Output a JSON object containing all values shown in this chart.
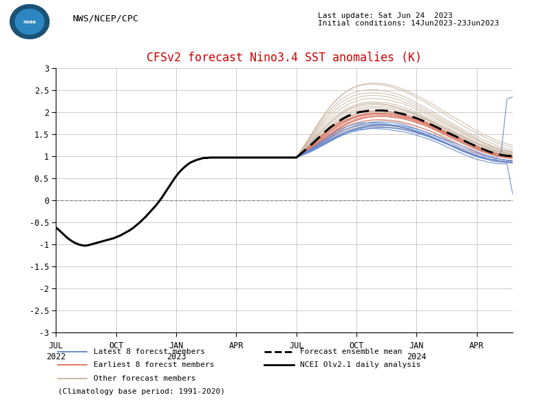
{
  "title": "CFSv2 forecast Nino3.4 SST anomalies (K)",
  "title_color": "#cc0000",
  "header_left": "NWS/NCEP/CPC",
  "header_right_line1": "Last update: Sat Jun 24  2023",
  "header_right_line2": "Initial conditions: 14Jun2023-23Jun2023",
  "ylim": [
    -3,
    3
  ],
  "ytick_vals": [
    -3,
    -2.5,
    -2,
    -1.5,
    -1,
    -0.5,
    0,
    0.5,
    1,
    1.5,
    2,
    2.5,
    3
  ],
  "xlabel_months": [
    "JUL",
    "OCT",
    "JAN",
    "APR",
    "JUL",
    "OCT",
    "JAN",
    "APR"
  ],
  "xlabel_years": [
    "2022",
    "",
    "2023",
    "",
    "",
    "",
    "2024",
    ""
  ],
  "background_color": "#ffffff",
  "grid_color": "#bbbbbb",
  "legend_color_latest": "#6688cc",
  "legend_color_earliest": "#dd7766",
  "legend_color_other": "#c8b4a0",
  "climatology_note": "(Climatology base period: 1991-2020)",
  "obs_x": [
    0,
    4,
    8,
    12,
    16,
    20,
    24,
    28,
    32,
    36,
    40,
    44,
    48,
    52,
    56,
    60,
    64,
    68,
    72,
    76,
    80,
    84,
    88,
    92,
    96,
    100,
    104,
    108,
    112,
    116,
    120,
    124,
    128,
    132,
    136,
    140,
    144,
    148,
    152,
    156,
    160,
    164,
    168,
    172,
    176,
    180,
    184,
    188,
    192,
    196,
    200,
    204,
    208,
    212,
    216,
    220,
    224,
    228,
    232,
    236,
    240,
    244,
    248,
    252,
    256,
    260,
    264,
    268,
    272,
    276,
    280,
    284,
    288,
    292,
    296,
    300
  ],
  "obs_y": [
    -0.62,
    -0.68,
    -0.75,
    -0.82,
    -0.88,
    -0.93,
    -0.97,
    -1.0,
    -1.02,
    -1.03,
    -1.02,
    -1.0,
    -0.98,
    -0.96,
    -0.94,
    -0.92,
    -0.9,
    -0.88,
    -0.86,
    -0.83,
    -0.8,
    -0.76,
    -0.72,
    -0.68,
    -0.63,
    -0.57,
    -0.51,
    -0.44,
    -0.37,
    -0.29,
    -0.21,
    -0.13,
    -0.04,
    0.06,
    0.17,
    0.28,
    0.39,
    0.5,
    0.6,
    0.68,
    0.75,
    0.81,
    0.86,
    0.89,
    0.92,
    0.94,
    0.96,
    0.96,
    0.97,
    0.97,
    0.97,
    0.97,
    0.97,
    0.97,
    0.97,
    0.97,
    0.97,
    0.97,
    0.97,
    0.97,
    0.97,
    0.97,
    0.97,
    0.97,
    0.97,
    0.97,
    0.97,
    0.97,
    0.97,
    0.97,
    0.97,
    0.97,
    0.97,
    0.97,
    0.97,
    0.97
  ],
  "fcast_start": 300,
  "fcast_end": 570,
  "latest8_y": [
    [
      0.97,
      1.02,
      1.07,
      1.13,
      1.2,
      1.27,
      1.34,
      1.41,
      1.47,
      1.52,
      1.56,
      1.59,
      1.61,
      1.63,
      1.64,
      1.65,
      1.65,
      1.64,
      1.63,
      1.61,
      1.58,
      1.55,
      1.51,
      1.47,
      1.42,
      1.37,
      1.32,
      1.26,
      1.21,
      1.15,
      1.1,
      1.05,
      1.01,
      0.97,
      0.94,
      0.91,
      0.89,
      0.87,
      0.86
    ],
    [
      0.97,
      1.03,
      1.09,
      1.15,
      1.22,
      1.29,
      1.36,
      1.43,
      1.5,
      1.56,
      1.61,
      1.65,
      1.68,
      1.7,
      1.71,
      1.72,
      1.72,
      1.71,
      1.7,
      1.68,
      1.65,
      1.62,
      1.58,
      1.54,
      1.49,
      1.44,
      1.39,
      1.34,
      1.29,
      1.24,
      1.19,
      1.14,
      1.09,
      1.04,
      1.0,
      0.96,
      0.93,
      0.91,
      0.9
    ],
    [
      0.97,
      1.04,
      1.11,
      1.18,
      1.26,
      1.34,
      1.42,
      1.5,
      1.57,
      1.63,
      1.68,
      1.72,
      1.75,
      1.77,
      1.78,
      1.78,
      1.77,
      1.76,
      1.74,
      1.71,
      1.67,
      1.63,
      1.58,
      1.53,
      1.48,
      1.42,
      1.37,
      1.31,
      1.25,
      1.19,
      1.14,
      1.09,
      1.05,
      1.01,
      0.98,
      0.95,
      0.93,
      0.91,
      0.9
    ],
    [
      0.97,
      1.05,
      1.12,
      1.2,
      1.28,
      1.36,
      1.44,
      1.51,
      1.58,
      1.63,
      1.67,
      1.7,
      1.72,
      1.73,
      1.73,
      1.72,
      1.71,
      1.69,
      1.67,
      1.64,
      1.61,
      1.57,
      1.53,
      1.48,
      1.43,
      1.37,
      1.32,
      1.26,
      1.2,
      1.14,
      1.09,
      1.04,
      1.0,
      0.96,
      0.93,
      0.91,
      0.89,
      0.88,
      0.87
    ],
    [
      0.97,
      1.04,
      1.1,
      1.17,
      1.24,
      1.31,
      1.38,
      1.45,
      1.51,
      1.56,
      1.6,
      1.63,
      1.65,
      1.66,
      1.66,
      1.66,
      1.65,
      1.64,
      1.62,
      1.6,
      1.57,
      1.53,
      1.49,
      1.45,
      1.4,
      1.35,
      1.3,
      1.25,
      1.19,
      1.14,
      1.09,
      1.04,
      1.0,
      0.96,
      0.93,
      0.91,
      0.89,
      0.88,
      0.87
    ],
    [
      0.97,
      1.03,
      1.08,
      1.14,
      1.21,
      1.28,
      1.35,
      1.42,
      1.49,
      1.55,
      1.6,
      1.64,
      1.67,
      1.69,
      1.7,
      1.7,
      1.7,
      1.69,
      1.67,
      1.65,
      1.62,
      1.58,
      1.54,
      1.49,
      1.44,
      1.38,
      1.32,
      1.26,
      1.2,
      1.14,
      1.08,
      1.03,
      0.98,
      0.94,
      0.91,
      0.88,
      0.87,
      0.86,
      0.85
    ],
    [
      0.97,
      1.05,
      1.13,
      1.21,
      1.3,
      1.39,
      1.48,
      1.56,
      1.63,
      1.68,
      1.72,
      1.75,
      1.76,
      1.76,
      1.76,
      1.75,
      1.73,
      1.71,
      1.68,
      1.65,
      1.61,
      1.57,
      1.52,
      1.47,
      1.42,
      1.36,
      1.3,
      1.24,
      1.18,
      1.12,
      1.07,
      1.02,
      0.98,
      0.95,
      0.93,
      0.92,
      1.1,
      2.3,
      2.35
    ],
    [
      0.97,
      1.04,
      1.1,
      1.17,
      1.24,
      1.31,
      1.38,
      1.44,
      1.5,
      1.55,
      1.58,
      1.61,
      1.62,
      1.63,
      1.63,
      1.62,
      1.61,
      1.59,
      1.57,
      1.55,
      1.52,
      1.48,
      1.44,
      1.4,
      1.35,
      1.3,
      1.24,
      1.18,
      1.12,
      1.07,
      1.01,
      0.96,
      0.92,
      0.89,
      0.86,
      0.84,
      0.83,
      0.83,
      0.14
    ]
  ],
  "earliest8_y": [
    [
      0.97,
      1.05,
      1.13,
      1.22,
      1.31,
      1.4,
      1.49,
      1.58,
      1.66,
      1.73,
      1.79,
      1.83,
      1.87,
      1.89,
      1.9,
      1.91,
      1.9,
      1.89,
      1.87,
      1.85,
      1.81,
      1.78,
      1.73,
      1.68,
      1.63,
      1.57,
      1.51,
      1.45,
      1.39,
      1.33,
      1.27,
      1.21,
      1.16,
      1.11,
      1.07,
      1.04,
      1.01,
      0.99,
      0.98
    ],
    [
      0.97,
      1.06,
      1.15,
      1.24,
      1.33,
      1.43,
      1.52,
      1.61,
      1.69,
      1.76,
      1.82,
      1.86,
      1.9,
      1.92,
      1.93,
      1.94,
      1.93,
      1.92,
      1.9,
      1.87,
      1.84,
      1.8,
      1.76,
      1.71,
      1.66,
      1.6,
      1.54,
      1.48,
      1.42,
      1.36,
      1.3,
      1.24,
      1.18,
      1.13,
      1.09,
      1.05,
      1.02,
      1.0,
      0.99
    ],
    [
      0.97,
      1.07,
      1.17,
      1.27,
      1.38,
      1.48,
      1.58,
      1.67,
      1.75,
      1.82,
      1.87,
      1.91,
      1.94,
      1.96,
      1.97,
      1.97,
      1.97,
      1.95,
      1.93,
      1.91,
      1.87,
      1.83,
      1.79,
      1.74,
      1.68,
      1.62,
      1.56,
      1.5,
      1.44,
      1.38,
      1.32,
      1.26,
      1.2,
      1.14,
      1.09,
      1.05,
      1.02,
      1.0,
      0.98
    ],
    [
      0.97,
      1.06,
      1.14,
      1.23,
      1.32,
      1.41,
      1.5,
      1.59,
      1.67,
      1.74,
      1.79,
      1.84,
      1.87,
      1.89,
      1.9,
      1.9,
      1.9,
      1.88,
      1.87,
      1.84,
      1.81,
      1.77,
      1.73,
      1.68,
      1.62,
      1.56,
      1.5,
      1.44,
      1.38,
      1.32,
      1.26,
      1.2,
      1.14,
      1.09,
      1.05,
      1.01,
      0.98,
      0.96,
      0.95
    ],
    [
      0.97,
      1.07,
      1.16,
      1.26,
      1.36,
      1.46,
      1.56,
      1.65,
      1.73,
      1.8,
      1.86,
      1.9,
      1.93,
      1.95,
      1.96,
      1.96,
      1.96,
      1.95,
      1.93,
      1.9,
      1.87,
      1.83,
      1.78,
      1.73,
      1.67,
      1.61,
      1.55,
      1.49,
      1.43,
      1.37,
      1.31,
      1.25,
      1.19,
      1.14,
      1.09,
      1.05,
      1.02,
      1.0,
      0.99
    ],
    [
      0.97,
      1.08,
      1.18,
      1.29,
      1.4,
      1.51,
      1.61,
      1.7,
      1.78,
      1.84,
      1.89,
      1.93,
      1.96,
      1.97,
      1.98,
      1.97,
      1.96,
      1.95,
      1.92,
      1.89,
      1.86,
      1.82,
      1.77,
      1.71,
      1.65,
      1.59,
      1.52,
      1.46,
      1.39,
      1.33,
      1.27,
      1.21,
      1.15,
      1.1,
      1.06,
      1.02,
      0.99,
      0.97,
      0.96
    ],
    [
      0.97,
      1.05,
      1.12,
      1.2,
      1.28,
      1.37,
      1.45,
      1.54,
      1.61,
      1.68,
      1.73,
      1.77,
      1.8,
      1.82,
      1.83,
      1.83,
      1.82,
      1.81,
      1.79,
      1.76,
      1.73,
      1.69,
      1.64,
      1.59,
      1.54,
      1.48,
      1.42,
      1.36,
      1.3,
      1.24,
      1.18,
      1.12,
      1.07,
      1.02,
      0.98,
      0.95,
      0.93,
      0.91,
      0.9
    ],
    [
      0.97,
      1.09,
      1.2,
      1.31,
      1.43,
      1.54,
      1.65,
      1.74,
      1.82,
      1.89,
      1.94,
      1.98,
      2.01,
      2.02,
      2.03,
      2.03,
      2.02,
      2.0,
      1.98,
      1.95,
      1.91,
      1.87,
      1.82,
      1.77,
      1.71,
      1.65,
      1.58,
      1.52,
      1.46,
      1.39,
      1.33,
      1.27,
      1.21,
      1.16,
      1.11,
      1.07,
      1.03,
      1.01,
      1.0
    ]
  ],
  "other_members_y": [
    [
      0.97,
      1.06,
      1.15,
      1.25,
      1.35,
      1.46,
      1.56,
      1.66,
      1.75,
      1.83,
      1.89,
      1.94,
      1.97,
      1.99,
      2.0,
      2.0,
      1.99,
      1.97,
      1.95,
      1.92,
      1.89,
      1.85,
      1.8,
      1.75,
      1.69,
      1.63,
      1.57,
      1.51,
      1.45,
      1.39,
      1.33,
      1.27,
      1.22,
      1.17,
      1.13,
      1.09,
      1.06,
      1.04,
      1.03
    ],
    [
      0.97,
      1.07,
      1.17,
      1.28,
      1.4,
      1.51,
      1.62,
      1.72,
      1.81,
      1.88,
      1.94,
      1.98,
      2.01,
      2.03,
      2.03,
      2.03,
      2.02,
      2.0,
      1.98,
      1.95,
      1.91,
      1.87,
      1.82,
      1.77,
      1.71,
      1.65,
      1.58,
      1.52,
      1.46,
      1.39,
      1.33,
      1.27,
      1.21,
      1.16,
      1.12,
      1.08,
      1.05,
      1.03,
      1.02
    ],
    [
      0.97,
      1.08,
      1.19,
      1.31,
      1.43,
      1.55,
      1.67,
      1.77,
      1.86,
      1.94,
      2.0,
      2.04,
      2.07,
      2.09,
      2.1,
      2.09,
      2.08,
      2.06,
      2.03,
      2.0,
      1.96,
      1.92,
      1.87,
      1.81,
      1.75,
      1.69,
      1.63,
      1.56,
      1.5,
      1.43,
      1.37,
      1.31,
      1.25,
      1.2,
      1.15,
      1.11,
      1.08,
      1.05,
      1.04
    ],
    [
      0.97,
      1.09,
      1.21,
      1.34,
      1.47,
      1.59,
      1.71,
      1.81,
      1.9,
      1.98,
      2.04,
      2.08,
      2.11,
      2.13,
      2.13,
      2.13,
      2.12,
      2.1,
      2.07,
      2.03,
      1.99,
      1.95,
      1.9,
      1.84,
      1.78,
      1.72,
      1.65,
      1.59,
      1.52,
      1.46,
      1.4,
      1.34,
      1.28,
      1.23,
      1.18,
      1.13,
      1.1,
      1.07,
      1.06
    ],
    [
      0.97,
      1.1,
      1.23,
      1.37,
      1.51,
      1.64,
      1.76,
      1.86,
      1.95,
      2.03,
      2.09,
      2.13,
      2.16,
      2.17,
      2.18,
      2.17,
      2.16,
      2.13,
      2.1,
      2.06,
      2.02,
      1.97,
      1.91,
      1.85,
      1.79,
      1.72,
      1.65,
      1.59,
      1.52,
      1.46,
      1.39,
      1.33,
      1.27,
      1.22,
      1.17,
      1.13,
      1.1,
      1.07,
      1.06
    ],
    [
      0.97,
      1.11,
      1.25,
      1.4,
      1.54,
      1.68,
      1.81,
      1.92,
      2.01,
      2.09,
      2.15,
      2.19,
      2.22,
      2.23,
      2.23,
      2.22,
      2.21,
      2.18,
      2.15,
      2.11,
      2.06,
      2.01,
      1.95,
      1.89,
      1.83,
      1.76,
      1.69,
      1.62,
      1.55,
      1.48,
      1.42,
      1.35,
      1.29,
      1.24,
      1.19,
      1.14,
      1.11,
      1.08,
      1.07
    ],
    [
      0.97,
      1.12,
      1.27,
      1.43,
      1.59,
      1.74,
      1.87,
      1.99,
      2.09,
      2.17,
      2.23,
      2.27,
      2.3,
      2.31,
      2.31,
      2.3,
      2.28,
      2.25,
      2.22,
      2.18,
      2.13,
      2.07,
      2.01,
      1.95,
      1.88,
      1.81,
      1.74,
      1.67,
      1.6,
      1.53,
      1.46,
      1.39,
      1.33,
      1.27,
      1.22,
      1.17,
      1.13,
      1.1,
      1.09
    ],
    [
      0.97,
      1.13,
      1.3,
      1.47,
      1.64,
      1.8,
      1.94,
      2.06,
      2.16,
      2.24,
      2.3,
      2.34,
      2.37,
      2.38,
      2.38,
      2.37,
      2.35,
      2.32,
      2.28,
      2.23,
      2.18,
      2.12,
      2.05,
      1.99,
      1.92,
      1.84,
      1.77,
      1.7,
      1.63,
      1.56,
      1.49,
      1.42,
      1.36,
      1.3,
      1.24,
      1.19,
      1.15,
      1.12,
      1.1
    ],
    [
      0.97,
      1.14,
      1.32,
      1.5,
      1.68,
      1.85,
      2.0,
      2.13,
      2.23,
      2.31,
      2.37,
      2.41,
      2.43,
      2.44,
      2.44,
      2.43,
      2.41,
      2.38,
      2.34,
      2.29,
      2.23,
      2.17,
      2.1,
      2.03,
      1.96,
      1.88,
      1.81,
      1.74,
      1.66,
      1.59,
      1.52,
      1.45,
      1.38,
      1.32,
      1.26,
      1.21,
      1.17,
      1.13,
      1.11
    ],
    [
      0.97,
      1.15,
      1.34,
      1.54,
      1.73,
      1.91,
      2.06,
      2.19,
      2.3,
      2.38,
      2.44,
      2.48,
      2.5,
      2.51,
      2.51,
      2.49,
      2.47,
      2.44,
      2.4,
      2.35,
      2.29,
      2.22,
      2.15,
      2.08,
      2.01,
      1.93,
      1.85,
      1.78,
      1.7,
      1.63,
      1.56,
      1.49,
      1.43,
      1.37,
      1.31,
      1.26,
      1.21,
      1.17,
      1.15
    ],
    [
      0.97,
      1.17,
      1.37,
      1.58,
      1.78,
      1.97,
      2.14,
      2.28,
      2.4,
      2.49,
      2.56,
      2.6,
      2.63,
      2.64,
      2.63,
      2.62,
      2.6,
      2.56,
      2.52,
      2.47,
      2.41,
      2.34,
      2.27,
      2.2,
      2.12,
      2.04,
      1.96,
      1.88,
      1.8,
      1.72,
      1.64,
      1.57,
      1.5,
      1.44,
      1.38,
      1.32,
      1.27,
      1.23,
      1.2
    ],
    [
      0.97,
      1.16,
      1.36,
      1.57,
      1.77,
      1.96,
      2.13,
      2.27,
      2.39,
      2.49,
      2.56,
      2.61,
      2.64,
      2.66,
      2.66,
      2.65,
      2.63,
      2.6,
      2.56,
      2.51,
      2.45,
      2.39,
      2.32,
      2.25,
      2.18,
      2.1,
      2.02,
      1.94,
      1.86,
      1.79,
      1.71,
      1.63,
      1.56,
      1.49,
      1.43,
      1.37,
      1.32,
      1.28,
      1.25
    ],
    [
      0.97,
      1.1,
      1.23,
      1.37,
      1.51,
      1.64,
      1.77,
      1.88,
      1.98,
      2.06,
      2.12,
      2.16,
      2.19,
      2.2,
      2.2,
      2.19,
      2.17,
      2.14,
      2.1,
      2.06,
      2.01,
      1.95,
      1.89,
      1.83,
      1.76,
      1.69,
      1.62,
      1.55,
      1.48,
      1.41,
      1.35,
      1.28,
      1.22,
      1.17,
      1.12,
      1.08,
      1.05,
      1.03,
      1.02
    ],
    [
      0.97,
      1.08,
      1.19,
      1.3,
      1.41,
      1.52,
      1.62,
      1.71,
      1.79,
      1.85,
      1.9,
      1.93,
      1.95,
      1.96,
      1.96,
      1.95,
      1.93,
      1.91,
      1.88,
      1.85,
      1.81,
      1.76,
      1.72,
      1.67,
      1.61,
      1.55,
      1.49,
      1.43,
      1.37,
      1.31,
      1.25,
      1.19,
      1.14,
      1.09,
      1.05,
      1.01,
      0.99,
      0.97,
      0.96
    ],
    [
      0.97,
      1.06,
      1.14,
      1.23,
      1.31,
      1.4,
      1.48,
      1.56,
      1.63,
      1.69,
      1.74,
      1.77,
      1.8,
      1.81,
      1.82,
      1.81,
      1.8,
      1.79,
      1.77,
      1.74,
      1.71,
      1.68,
      1.64,
      1.6,
      1.55,
      1.5,
      1.45,
      1.4,
      1.34,
      1.29,
      1.23,
      1.18,
      1.13,
      1.08,
      1.04,
      1.01,
      0.98,
      0.96,
      0.95
    ],
    [
      0.97,
      1.05,
      1.12,
      1.19,
      1.26,
      1.33,
      1.4,
      1.47,
      1.53,
      1.58,
      1.62,
      1.65,
      1.67,
      1.68,
      1.68,
      1.68,
      1.67,
      1.65,
      1.63,
      1.6,
      1.57,
      1.54,
      1.5,
      1.46,
      1.41,
      1.36,
      1.31,
      1.26,
      1.21,
      1.15,
      1.1,
      1.05,
      1.0,
      0.96,
      0.92,
      0.89,
      0.87,
      0.85,
      0.84
    ],
    [
      0.97,
      1.05,
      1.12,
      1.2,
      1.27,
      1.35,
      1.42,
      1.49,
      1.55,
      1.6,
      1.65,
      1.68,
      1.7,
      1.71,
      1.71,
      1.71,
      1.7,
      1.68,
      1.66,
      1.63,
      1.6,
      1.56,
      1.52,
      1.48,
      1.43,
      1.38,
      1.33,
      1.27,
      1.22,
      1.16,
      1.11,
      1.06,
      1.01,
      0.97,
      0.93,
      0.9,
      0.88,
      0.86,
      0.85
    ]
  ],
  "ensemble_mean_y": [
    0.97,
    1.08,
    1.19,
    1.31,
    1.43,
    1.55,
    1.66,
    1.75,
    1.84,
    1.91,
    1.96,
    2.0,
    2.02,
    2.04,
    2.04,
    2.04,
    2.03,
    2.01,
    1.98,
    1.95,
    1.91,
    1.87,
    1.82,
    1.76,
    1.7,
    1.64,
    1.57,
    1.51,
    1.45,
    1.38,
    1.32,
    1.26,
    1.2,
    1.15,
    1.1,
    1.06,
    1.03,
    1.01,
    1.0
  ],
  "x_tick_positions": [
    0,
    75,
    150,
    225,
    300,
    375,
    450,
    525
  ],
  "x_max": 570,
  "n_fcast_pts": 39
}
